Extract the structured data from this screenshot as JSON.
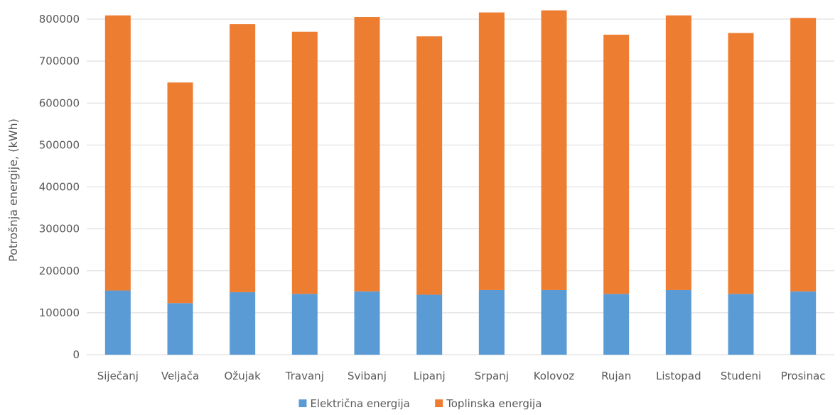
{
  "chart_data": {
    "type": "bar",
    "stacked": true,
    "title": "",
    "xlabel": "",
    "ylabel": "Potrošnja energije, (kWh)",
    "ylim": [
      0,
      800000
    ],
    "yticks": [
      0,
      100000,
      200000,
      300000,
      400000,
      500000,
      600000,
      700000,
      800000
    ],
    "ytick_labels": [
      "0",
      "100000",
      "200000",
      "300000",
      "400000",
      "500000",
      "600000",
      "700000",
      "800000"
    ],
    "grid": true,
    "legend_position": "bottom",
    "categories": [
      "Siječanj",
      "Veljača",
      "Ožujak",
      "Travanj",
      "Svibanj",
      "Lipanj",
      "Srpanj",
      "Kolovoz",
      "Rujan",
      "Listopad",
      "Studeni",
      "Prosinac"
    ],
    "series": [
      {
        "name": "Električna energija",
        "color": "#5b9bd5",
        "values": [
          153000,
          123000,
          149000,
          145000,
          151000,
          143000,
          154000,
          154000,
          145000,
          154000,
          145000,
          151000
        ]
      },
      {
        "name": "Toplinska energija",
        "color": "#ed7d31",
        "values": [
          656000,
          526000,
          639000,
          625000,
          654000,
          616000,
          662000,
          667000,
          618000,
          655000,
          622000,
          652000
        ]
      }
    ]
  }
}
